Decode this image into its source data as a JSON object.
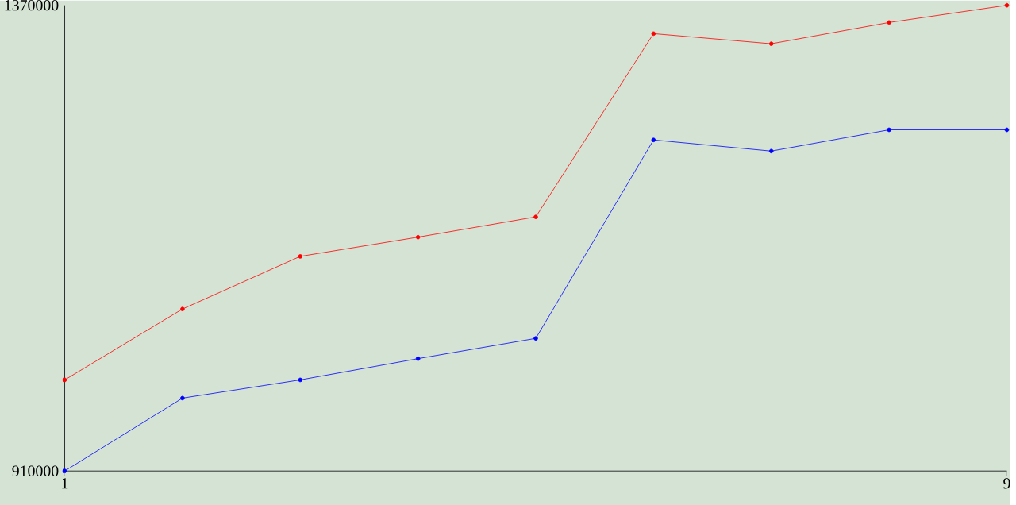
{
  "chart_data": {
    "type": "line",
    "x": [
      1,
      2,
      3,
      4,
      5,
      6,
      7,
      8,
      9
    ],
    "series": [
      {
        "color": "#ff0000",
        "values": [
          1000000,
          1070000,
          1122000,
          1141000,
          1161000,
          1342000,
          1332000,
          1353000,
          1370000
        ]
      },
      {
        "color": "#0000ff",
        "values": [
          910000,
          982000,
          1000000,
          1021000,
          1041000,
          1237000,
          1226000,
          1247000,
          1247000
        ]
      }
    ],
    "xlim": [
      1,
      9
    ],
    "xticks": [
      1,
      9
    ],
    "ylim": [
      910000,
      1370000
    ],
    "yticks": [
      910000,
      1370000
    ],
    "marker": "circle",
    "grid": false
  }
}
